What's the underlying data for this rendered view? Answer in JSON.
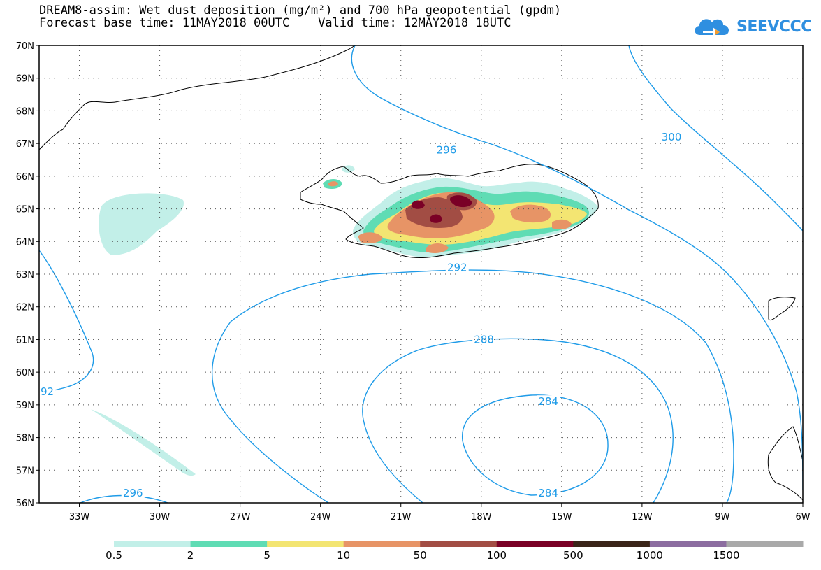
{
  "title": {
    "line1": "DREAM8-assim: Wet dust deposition (mg/m²) and 700 hPa geopotential (gpdm)",
    "line2": "Forecast base time: 11MAY2018 00UTC    Valid time: 12MAY2018 18UTC"
  },
  "logo": {
    "icon": "cloud-icon",
    "text": "SEEVCCC",
    "color": "#2f8fe0"
  },
  "map": {
    "lat_labels": [
      "70N",
      "69N",
      "68N",
      "67N",
      "66N",
      "65N",
      "64N",
      "63N",
      "62N",
      "61N",
      "60N",
      "59N",
      "58N",
      "57N",
      "56N"
    ],
    "lon_labels": [
      "33W",
      "30W",
      "27W",
      "24W",
      "21W",
      "18W",
      "15W",
      "12W",
      "9W",
      "6W"
    ],
    "lat_range": [
      56,
      70
    ],
    "lon_range": [
      -34.5,
      -6
    ],
    "grid": "dotted",
    "contour_color": "#1e9be8",
    "contour_labels": [
      {
        "text": "296",
        "lon": -19.3,
        "lat": 66.8
      },
      {
        "text": "300",
        "lon": -10.9,
        "lat": 67.2
      },
      {
        "text": "292",
        "lon": -18.9,
        "lat": 63.2
      },
      {
        "text": "288",
        "lon": -17.9,
        "lat": 61.0
      },
      {
        "text": "284",
        "lon": -15.5,
        "lat": 59.1
      },
      {
        "text": "284",
        "lon": -15.5,
        "lat": 56.3
      },
      {
        "text": "296",
        "lon": -31.0,
        "lat": 56.3
      },
      {
        "text": "92",
        "lon": -34.2,
        "lat": 59.4
      }
    ]
  },
  "colorbar": {
    "labels": [
      "0.5",
      "2",
      "5",
      "10",
      "50",
      "100",
      "500",
      "1000",
      "1500"
    ],
    "colors": [
      "#c2efe8",
      "#5fdcb4",
      "#f3e572",
      "#e79466",
      "#a24d44",
      "#7a0026",
      "#3a2418",
      "#8c6da0",
      "#a9a9a9"
    ]
  }
}
